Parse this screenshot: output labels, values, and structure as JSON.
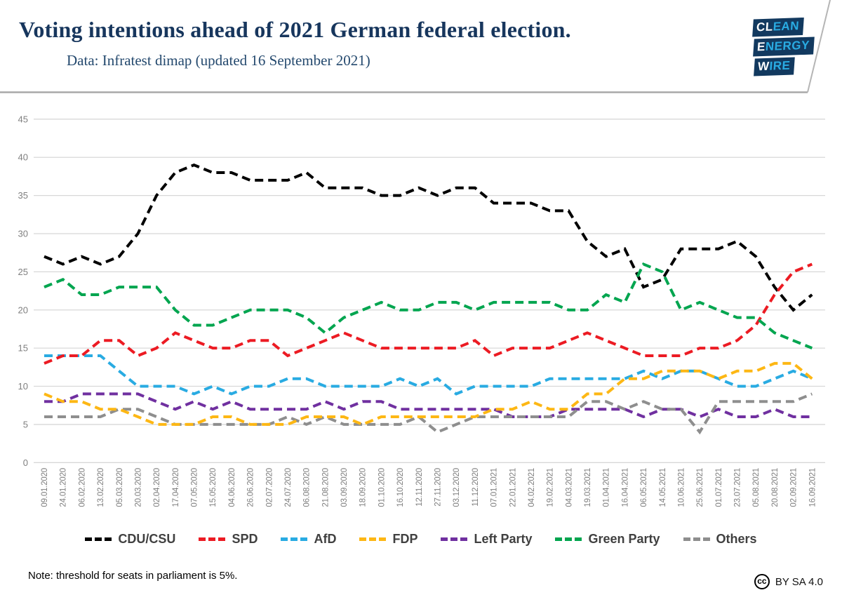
{
  "header": {
    "title": "Voting intentions ahead of 2021 German federal election.",
    "subtitle": "Data: Infratest dimap (updated 16 September 2021)",
    "logo": {
      "rows": [
        {
          "white": "CL",
          "cyan": "EAN"
        },
        {
          "white": "E",
          "cyan": "NERGY"
        },
        {
          "white": "W",
          "cyan": "IRE"
        }
      ]
    }
  },
  "footer": {
    "note": "Note: threshold for seats in parliament is 5%.",
    "cc_glyph": "cc",
    "license": "BY SA 4.0"
  },
  "chart_data": {
    "type": "line",
    "line_style": "dashed",
    "grid": true,
    "legend_position": "bottom",
    "ylim": [
      0,
      45
    ],
    "yticks": [
      0,
      5,
      10,
      15,
      20,
      25,
      30,
      35,
      40,
      45
    ],
    "xlabel": "",
    "ylabel": "",
    "x": [
      "09.01.2020",
      "24.01.2020",
      "06.02.2020",
      "13.02.2020",
      "05.03.2020",
      "20.03.2020",
      "02.04.2020",
      "17.04.2020",
      "07.05.2020",
      "15.05.2020",
      "04.06.2020",
      "26.06.2020",
      "02.07.2020",
      "24.07.2020",
      "06.08.2020",
      "21.08.2020",
      "03.09.2020",
      "18.09.2020",
      "01.10.2020",
      "16.10.2020",
      "12.11.2020",
      "27.11.2020",
      "03.12.2020",
      "11.12.2020",
      "07.01.2021",
      "22.01.2021",
      "04.02.2021",
      "19.02.2021",
      "04.03.2021",
      "19.03.2021",
      "01.04.2021",
      "16.04.2021",
      "06.05.2021",
      "14.05.2021",
      "10.06.2021",
      "25.06.2021",
      "01.07.2021",
      "23.07.2021",
      "05.08.2021",
      "20.08.2021",
      "02.09.2021",
      "16.09.2021"
    ],
    "series": [
      {
        "name": "CDU/CSU",
        "color": "#000000",
        "values": [
          27,
          26,
          27,
          26,
          27,
          30,
          35,
          38,
          39,
          38,
          38,
          37,
          37,
          37,
          38,
          36,
          36,
          36,
          35,
          35,
          36,
          35,
          36,
          36,
          34,
          34,
          34,
          33,
          33,
          29,
          27,
          28,
          23,
          24,
          28,
          28,
          28,
          29,
          27,
          23,
          20,
          22
        ]
      },
      {
        "name": "SPD",
        "color": "#ec1b23",
        "values": [
          13,
          14,
          14,
          16,
          16,
          14,
          15,
          17,
          16,
          15,
          15,
          16,
          16,
          14,
          15,
          16,
          17,
          16,
          15,
          15,
          15,
          15,
          15,
          16,
          14,
          15,
          15,
          15,
          16,
          17,
          16,
          15,
          14,
          14,
          14,
          15,
          15,
          16,
          18,
          22,
          25,
          26
        ]
      },
      {
        "name": "AfD",
        "color": "#29abe2",
        "values": [
          14,
          14,
          14,
          14,
          12,
          10,
          10,
          10,
          9,
          10,
          9,
          10,
          10,
          11,
          11,
          10,
          10,
          10,
          10,
          11,
          10,
          11,
          9,
          10,
          10,
          10,
          10,
          11,
          11,
          11,
          11,
          11,
          12,
          11,
          12,
          12,
          11,
          10,
          10,
          11,
          12,
          11
        ]
      },
      {
        "name": "FDP",
        "color": "#fdb714",
        "values": [
          9,
          8,
          8,
          7,
          7,
          6,
          5,
          5,
          5,
          6,
          6,
          5,
          5,
          5,
          6,
          6,
          6,
          5,
          6,
          6,
          6,
          6,
          6,
          6,
          7,
          7,
          8,
          7,
          7,
          9,
          9,
          11,
          11,
          12,
          12,
          12,
          11,
          12,
          12,
          13,
          13,
          11
        ]
      },
      {
        "name": "Left Party",
        "color": "#7030a0",
        "values": [
          8,
          8,
          9,
          9,
          9,
          9,
          8,
          7,
          8,
          7,
          8,
          7,
          7,
          7,
          7,
          8,
          7,
          8,
          8,
          7,
          7,
          7,
          7,
          7,
          7,
          6,
          6,
          6,
          7,
          7,
          7,
          7,
          6,
          7,
          7,
          6,
          7,
          6,
          6,
          7,
          6,
          6
        ]
      },
      {
        "name": "Green Party",
        "color": "#00a54f",
        "values": [
          23,
          24,
          22,
          22,
          23,
          23,
          23,
          20,
          18,
          18,
          19,
          20,
          20,
          20,
          19,
          17,
          19,
          20,
          21,
          20,
          20,
          21,
          21,
          20,
          21,
          21,
          21,
          21,
          20,
          20,
          22,
          21,
          26,
          25,
          20,
          21,
          20,
          19,
          19,
          17,
          16,
          15
        ]
      },
      {
        "name": "Others",
        "color": "#8e8e8e",
        "values": [
          6,
          6,
          6,
          6,
          7,
          7,
          6,
          5,
          5,
          5,
          5,
          5,
          5,
          6,
          5,
          6,
          5,
          5,
          5,
          5,
          6,
          4,
          5,
          6,
          6,
          6,
          6,
          6,
          6,
          8,
          8,
          7,
          8,
          7,
          7,
          4,
          8,
          8,
          8,
          8,
          8,
          9
        ]
      }
    ],
    "z_order": [
      "CDU/CSU",
      "Left Party",
      "Others",
      "AfD",
      "FDP",
      "SPD",
      "Green Party"
    ],
    "colors": {
      "gridline": "#d8d8d8",
      "axis_text": "#7f7f7f",
      "header_rule": "#a9a9a9"
    }
  }
}
